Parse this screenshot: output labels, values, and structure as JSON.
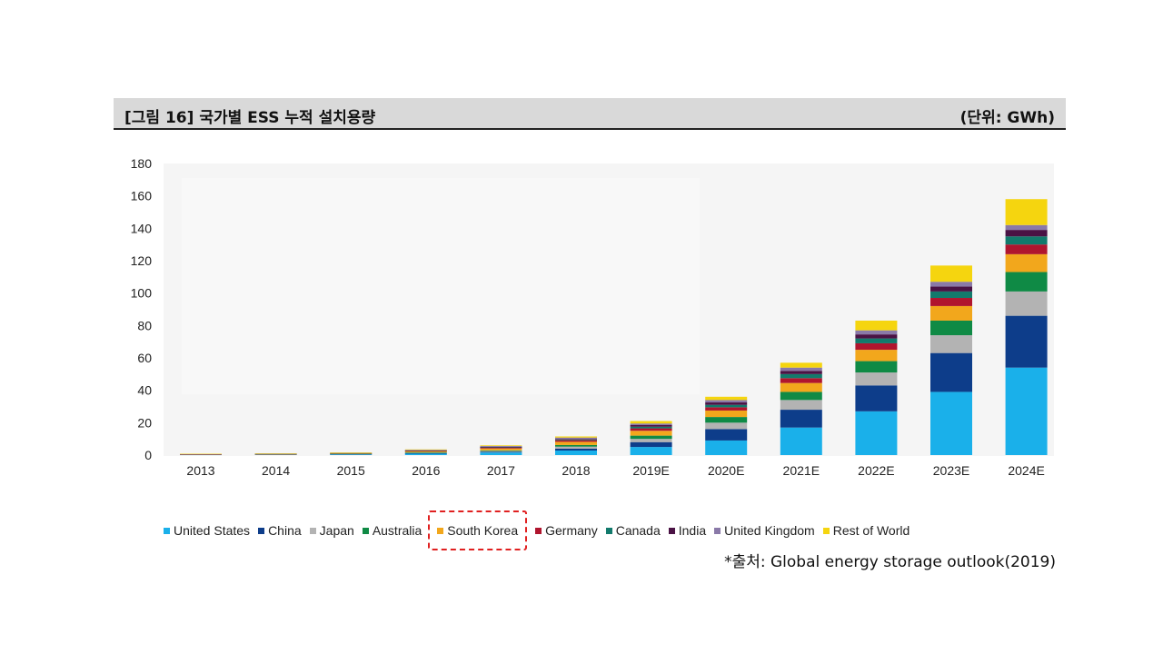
{
  "header": {
    "title": "[그림 16] 국가별 ESS 누적 설치용량",
    "unit": "(단위: GWh)"
  },
  "source": "*출처: Global energy storage outlook(2019)",
  "chart_data": {
    "type": "bar",
    "stacked": true,
    "categories": [
      "2013",
      "2014",
      "2015",
      "2016",
      "2017",
      "2018",
      "2019E",
      "2020E",
      "2021E",
      "2022E",
      "2023E",
      "2024E"
    ],
    "ylim": [
      0,
      180
    ],
    "yticks": [
      0,
      20,
      40,
      60,
      80,
      100,
      120,
      140,
      160,
      180
    ],
    "legend_position": "bottom",
    "highlighted_series": "South Korea",
    "series": [
      {
        "name": "United States",
        "color": "#1ab0ea",
        "values": [
          0.3,
          0.4,
          0.6,
          1.0,
          1.6,
          2.8,
          5,
          9,
          17,
          27,
          39,
          54
        ]
      },
      {
        "name": "China",
        "color": "#0d3d8a",
        "values": [
          0.1,
          0.1,
          0.1,
          0.2,
          0.4,
          1.2,
          3,
          7,
          11,
          16,
          24,
          32
        ]
      },
      {
        "name": "Japan",
        "color": "#b3b3b3",
        "values": [
          0.1,
          0.1,
          0.1,
          0.3,
          0.5,
          1.2,
          2,
          4,
          6,
          8,
          11,
          15
        ]
      },
      {
        "name": "Australia",
        "color": "#0f8a45",
        "values": [
          0.0,
          0.0,
          0.1,
          0.2,
          0.4,
          1.0,
          2,
          3.5,
          5,
          7,
          9,
          12
        ]
      },
      {
        "name": "South Korea",
        "color": "#f2a71c",
        "values": [
          0.0,
          0.1,
          0.2,
          0.6,
          1.2,
          2.0,
          3,
          4,
          5.5,
          7,
          9,
          11
        ]
      },
      {
        "name": "Germany",
        "color": "#b0152e",
        "values": [
          0.1,
          0.1,
          0.2,
          0.4,
          0.6,
          1.0,
          1.5,
          2,
          3,
          4,
          5,
          6
        ]
      },
      {
        "name": "Canada",
        "color": "#127a6c",
        "values": [
          0.0,
          0.0,
          0.0,
          0.1,
          0.2,
          0.4,
          1,
          1.5,
          2.5,
          3,
          4,
          5
        ]
      },
      {
        "name": "India",
        "color": "#4a1244",
        "values": [
          0.0,
          0.0,
          0.0,
          0.1,
          0.2,
          0.4,
          1,
          1.5,
          2,
          2.5,
          3,
          4
        ]
      },
      {
        "name": "United Kingdom",
        "color": "#8a79a8",
        "values": [
          0.0,
          0.1,
          0.1,
          0.3,
          0.5,
          0.8,
          1,
          1.5,
          2,
          2.5,
          3,
          3
        ]
      },
      {
        "name": "Rest of World",
        "color": "#f5d50f",
        "values": [
          0.2,
          0.2,
          0.2,
          0.3,
          0.4,
          0.7,
          1.5,
          2,
          3,
          6,
          10,
          16
        ]
      }
    ]
  }
}
